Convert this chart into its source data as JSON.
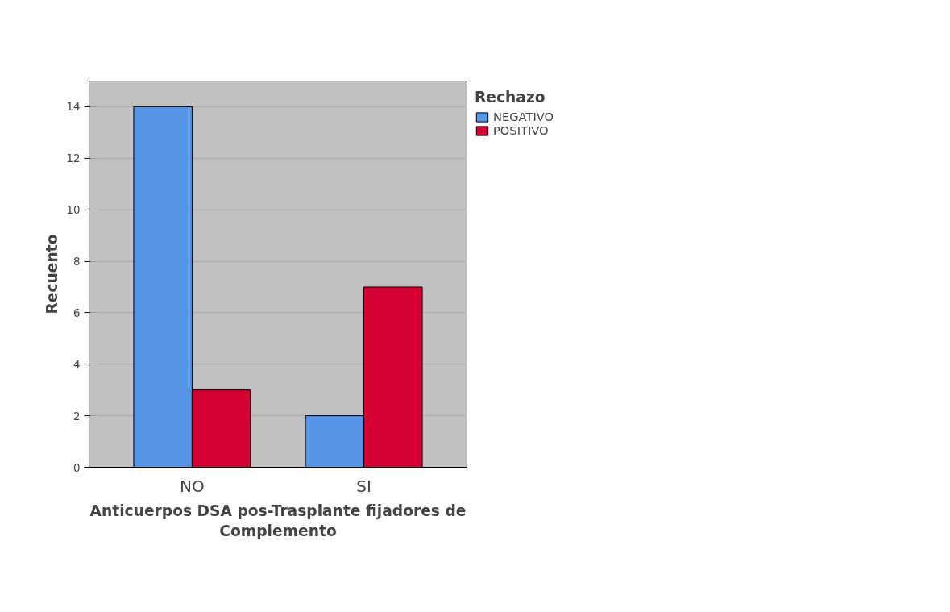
{
  "chart_data": {
    "type": "bar",
    "xlabel": "Anticuerpos DSA pos-Trasplante fijadores de\nComplemento",
    "ylabel": "Recuento",
    "legend_title": "Rechazo",
    "categories": [
      "NO",
      "SI"
    ],
    "series": [
      {
        "name": "NEGATIVO",
        "color": "#5596e6",
        "values": [
          14,
          2
        ]
      },
      {
        "name": "POSITIVO",
        "color": "#d50032",
        "values": [
          3,
          7
        ]
      }
    ],
    "ylim": [
      0,
      15
    ],
    "yticks": [
      0,
      2,
      4,
      6,
      8,
      10,
      12,
      14
    ],
    "grid": "y",
    "legend": "top right"
  }
}
